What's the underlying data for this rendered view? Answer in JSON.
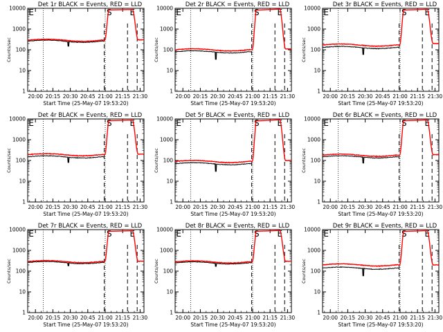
{
  "chart_data": [
    {
      "type": "line",
      "title": "Det 1r BLACK = Events, RED = LLD",
      "xlabel": "Start Time (25-May-07 19:53:20)",
      "ylabel": "Counts/sec",
      "yscale": "log",
      "ylim": [
        1,
        10000
      ],
      "yticks": [
        "1",
        "10",
        "100",
        "1000",
        "10000"
      ],
      "xticks": [
        "20:00",
        "20:15",
        "20:30",
        "20:45",
        "21:00",
        "21:15",
        "21:30"
      ],
      "xlim_seconds": [
        0,
        6000
      ],
      "dotted_lines_seconds": [
        800,
        4000
      ],
      "dashed_lines_seconds": [
        3950,
        5150,
        5650
      ],
      "markers": [
        "E",
        "S",
        "E"
      ],
      "series": [
        {
          "name": "Events",
          "color": "#000000",
          "baseline": 260,
          "dip_at_s": 2100,
          "dip_value": 150
        },
        {
          "name": "LLD",
          "color": "#ff0000",
          "baseline": 290,
          "spike_start_s": 4000,
          "spike_value": 9000,
          "recover_s": 5400,
          "end_value": 300
        }
      ]
    },
    {
      "type": "line",
      "title": "Det 2r BLACK = Events, RED = LLD",
      "xlabel": "Start Time (25-May-07 19:53:20)",
      "ylabel": "Counts/sec",
      "yscale": "log",
      "ylim": [
        1,
        10000
      ],
      "yticks": [
        "1",
        "10",
        "100",
        "1000",
        "10000"
      ],
      "xticks": [
        "20:00",
        "20:15",
        "20:30",
        "20:45",
        "21:00",
        "21:15",
        "21:30"
      ],
      "xlim_seconds": [
        0,
        6000
      ],
      "dotted_lines_seconds": [
        800,
        4000
      ],
      "dashed_lines_seconds": [
        3950,
        5150,
        5650
      ],
      "markers": [
        "E",
        "S",
        "E"
      ],
      "series": [
        {
          "name": "Events",
          "color": "#000000",
          "baseline": 80,
          "dip_at_s": 2100,
          "dip_value": 35
        },
        {
          "name": "LLD",
          "color": "#ff0000",
          "baseline": 100,
          "spike_start_s": 4000,
          "spike_value": 9000,
          "recover_s": 5400,
          "end_value": 110
        }
      ]
    },
    {
      "type": "line",
      "title": "Det 3r BLACK = Events, RED = LLD",
      "xlabel": "Start Time (25-May-07 19:53:20)",
      "ylabel": "Counts/sec",
      "yscale": "log",
      "ylim": [
        1,
        10000
      ],
      "yticks": [
        "1",
        "10",
        "100",
        "1000",
        "10000"
      ],
      "xticks": [
        "20:00",
        "20:15",
        "20:30",
        "20:45",
        "21:00",
        "21:15",
        "21:30"
      ],
      "xlim_seconds": [
        0,
        6000
      ],
      "dotted_lines_seconds": [
        800,
        4000
      ],
      "dashed_lines_seconds": [
        3950,
        5150,
        5650
      ],
      "markers": [
        "E",
        "S",
        "E"
      ],
      "series": [
        {
          "name": "Events",
          "color": "#000000",
          "baseline": 130,
          "dip_at_s": 2100,
          "dip_value": 60
        },
        {
          "name": "LLD",
          "color": "#ff0000",
          "baseline": 170,
          "spike_start_s": 4000,
          "spike_value": 9000,
          "recover_s": 5400,
          "end_value": 200
        }
      ]
    },
    {
      "type": "line",
      "title": "Det 4r BLACK = Events, RED = LLD",
      "xlabel": "Start Time (25-May-07 19:53:20)",
      "ylabel": "Counts/sec",
      "yscale": "log",
      "ylim": [
        1,
        10000
      ],
      "yticks": [
        "1",
        "10",
        "100",
        "1000",
        "10000"
      ],
      "xticks": [
        "20:00",
        "20:15",
        "20:30",
        "20:45",
        "21:00",
        "21:15",
        "21:30"
      ],
      "xlim_seconds": [
        0,
        6000
      ],
      "dotted_lines_seconds": [
        800,
        4000
      ],
      "dashed_lines_seconds": [
        3950,
        5150,
        5650
      ],
      "markers": [
        "E",
        "S",
        "E"
      ],
      "series": [
        {
          "name": "Events",
          "color": "#000000",
          "baseline": 150,
          "dip_at_s": 2100,
          "dip_value": 80
        },
        {
          "name": "LLD",
          "color": "#ff0000",
          "baseline": 190,
          "spike_start_s": 4000,
          "spike_value": 9000,
          "recover_s": 5400,
          "end_value": 200
        }
      ]
    },
    {
      "type": "line",
      "title": "Det 5r BLACK = Events, RED = LLD",
      "xlabel": "Start Time (25-May-07 19:53:20)",
      "ylabel": "Counts/sec",
      "yscale": "log",
      "ylim": [
        1,
        10000
      ],
      "yticks": [
        "1",
        "10",
        "100",
        "1000",
        "10000"
      ],
      "xticks": [
        "20:00",
        "20:15",
        "20:30",
        "20:45",
        "21:00",
        "21:15",
        "21:30"
      ],
      "xlim_seconds": [
        0,
        6000
      ],
      "dotted_lines_seconds": [
        800,
        4000
      ],
      "dashed_lines_seconds": [
        3950,
        5150,
        5650
      ],
      "markers": [
        "E",
        "S",
        "E"
      ],
      "series": [
        {
          "name": "Events",
          "color": "#000000",
          "baseline": 70,
          "dip_at_s": 2100,
          "dip_value": 30
        },
        {
          "name": "LLD",
          "color": "#ff0000",
          "baseline": 90,
          "spike_start_s": 4000,
          "spike_value": 9000,
          "recover_s": 5400,
          "end_value": 100
        }
      ]
    },
    {
      "type": "line",
      "title": "Det 6r BLACK = Events, RED = LLD",
      "xlabel": "Start Time (25-May-07 19:53:20)",
      "ylabel": "Counts/sec",
      "yscale": "log",
      "ylim": [
        1,
        10000
      ],
      "yticks": [
        "1",
        "10",
        "100",
        "1000",
        "10000"
      ],
      "xticks": [
        "20:00",
        "20:15",
        "20:30",
        "20:45",
        "21:00",
        "21:15",
        "21:30"
      ],
      "xlim_seconds": [
        0,
        6000
      ],
      "dotted_lines_seconds": [
        800,
        4000
      ],
      "dashed_lines_seconds": [
        3950,
        5150,
        5650
      ],
      "markers": [
        "E",
        "S",
        "E"
      ],
      "series": [
        {
          "name": "Events",
          "color": "#000000",
          "baseline": 150,
          "dip_at_s": 2100,
          "dip_value": 75
        },
        {
          "name": "LLD",
          "color": "#ff0000",
          "baseline": 180,
          "spike_start_s": 4000,
          "spike_value": 9000,
          "recover_s": 5400,
          "end_value": 190
        }
      ]
    },
    {
      "type": "line",
      "title": "Det 7r BLACK = Events, RED = LLD",
      "xlabel": "Start Time (25-May-07 19:53:20)",
      "ylabel": "Counts/sec",
      "yscale": "log",
      "ylim": [
        1,
        10000
      ],
      "yticks": [
        "1",
        "10",
        "100",
        "1000",
        "10000"
      ],
      "xticks": [
        "20:00",
        "20:15",
        "20:30",
        "20:45",
        "21:00",
        "21:15",
        "21:30"
      ],
      "xlim_seconds": [
        0,
        6000
      ],
      "dotted_lines_seconds": [
        800,
        4000
      ],
      "dashed_lines_seconds": [
        3950,
        5150,
        5650
      ],
      "markers": [
        "E",
        "S",
        "E"
      ],
      "series": [
        {
          "name": "Events",
          "color": "#000000",
          "baseline": 260,
          "dip_at_s": 2100,
          "dip_value": 180
        },
        {
          "name": "LLD",
          "color": "#ff0000",
          "baseline": 290,
          "spike_start_s": 4000,
          "spike_value": 9000,
          "recover_s": 5400,
          "end_value": 300
        }
      ]
    },
    {
      "type": "line",
      "title": "Det 8r BLACK = Events, RED = LLD",
      "xlabel": "Start Time (25-May-07 19:53:20)",
      "ylabel": "Counts/sec",
      "yscale": "log",
      "ylim": [
        1,
        10000
      ],
      "yticks": [
        "1",
        "10",
        "100",
        "1000",
        "10000"
      ],
      "xticks": [
        "20:00",
        "20:15",
        "20:30",
        "20:45",
        "21:00",
        "21:15",
        "21:30"
      ],
      "xlim_seconds": [
        0,
        6000
      ],
      "dotted_lines_seconds": [
        800,
        4000
      ],
      "dashed_lines_seconds": [
        3950,
        5150,
        5650
      ],
      "markers": [
        "E",
        "S",
        "E"
      ],
      "series": [
        {
          "name": "Events",
          "color": "#000000",
          "baseline": 250,
          "dip_at_s": 2100,
          "dip_value": 170
        },
        {
          "name": "LLD",
          "color": "#ff0000",
          "baseline": 280,
          "spike_start_s": 4000,
          "spike_value": 9000,
          "recover_s": 5400,
          "end_value": 300
        }
      ]
    },
    {
      "type": "line",
      "title": "Det 9r BLACK = Events, RED = LLD",
      "xlabel": "Start Time (25-May-07 19:53:20)",
      "ylabel": "Counts/sec",
      "yscale": "log",
      "ylim": [
        1,
        10000
      ],
      "yticks": [
        "1",
        "10",
        "100",
        "1000",
        "10000"
      ],
      "xticks": [
        "20:00",
        "20:15",
        "20:30",
        "20:45",
        "21:00",
        "21:15",
        "21:30"
      ],
      "xlim_seconds": [
        0,
        6000
      ],
      "dotted_lines_seconds": [
        800,
        4000
      ],
      "dashed_lines_seconds": [
        3950,
        5150,
        5650
      ],
      "markers": [
        "E",
        "S",
        "E"
      ],
      "series": [
        {
          "name": "Events",
          "color": "#000000",
          "baseline": 140,
          "dip_at_s": 2100,
          "dip_value": 60
        },
        {
          "name": "LLD",
          "color": "#ff0000",
          "baseline": 200,
          "spike_start_s": 4000,
          "spike_value": 9000,
          "recover_s": 5400,
          "end_value": 200
        }
      ]
    }
  ]
}
